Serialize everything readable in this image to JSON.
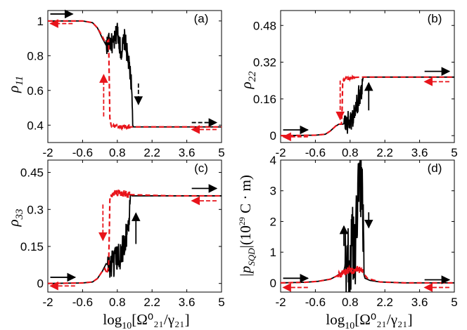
{
  "figure": {
    "xlabel_text": "log",
    "xlabel_sub": "10",
    "xlabel_bracket": "[Ω⁰₂₁/γ₂₁]",
    "colors": {
      "forward": "#000000",
      "backward": "#e8141b",
      "frame": "#000000"
    }
  },
  "chart_data": [
    {
      "id": "a",
      "type": "line",
      "tag": "(a)",
      "ylabel": "ρ11",
      "ylabel_main": "ρ",
      "ylabel_sub": "11",
      "xlim": [
        -2,
        5
      ],
      "ylim": [
        0.3,
        1.06
      ],
      "xticks": [
        -2,
        -0.6,
        0.8,
        2.2,
        3.6,
        5
      ],
      "xtick_labels": [
        "-2",
        "-0.6",
        "0.8",
        "2.2",
        "3.6",
        "5"
      ],
      "yticks": [
        0.4,
        0.6,
        0.8,
        1
      ],
      "ytick_labels": [
        "0.4",
        "0.6",
        "0.8",
        "1"
      ],
      "series": [
        {
          "name": "forward sweep",
          "style": "solid",
          "x": [
            -2,
            -0.6,
            -0.2,
            0.0,
            0.2,
            0.35,
            0.5,
            0.65,
            0.8,
            0.95,
            1.1,
            1.25,
            1.35,
            1.4,
            1.42,
            1.45,
            3.0,
            5
          ],
          "y": [
            1.0,
            1.0,
            0.99,
            0.96,
            0.9,
            0.86,
            0.88,
            0.86,
            0.95,
            0.82,
            0.9,
            0.76,
            0.66,
            0.57,
            0.4,
            0.39,
            0.39,
            0.39
          ],
          "noise_range": [
            0.35,
            1.4
          ],
          "noise_amp": 0.06
        },
        {
          "name": "backward sweep",
          "style": "dashed",
          "x": [
            -2,
            -0.6,
            -0.2,
            0.0,
            0.2,
            0.3,
            0.38,
            0.45,
            0.48,
            0.5,
            0.55,
            0.7,
            0.9,
            1.1,
            1.3,
            3.0,
            5
          ],
          "y": [
            1.0,
            1.0,
            0.99,
            0.96,
            0.91,
            0.88,
            0.88,
            0.89,
            0.62,
            0.44,
            0.4,
            0.395,
            0.39,
            0.39,
            0.39,
            0.39,
            0.39
          ],
          "noise_range": [
            0.55,
            1.3
          ],
          "noise_amp": 0.012
        }
      ],
      "arrows": [
        {
          "color": "forward",
          "style": "solid",
          "x1": -1.9,
          "x2": -1.0,
          "y": 1.04
        },
        {
          "color": "backward",
          "style": "dashed",
          "x1": -1.0,
          "x2": -1.9,
          "y": 0.985
        },
        {
          "color": "forward",
          "style": "dashed",
          "x1": 3.8,
          "x2": 4.8,
          "y": 0.415
        },
        {
          "color": "backward",
          "style": "dashed",
          "x1": 4.8,
          "x2": 3.8,
          "y": 0.375
        },
        {
          "color": "forward",
          "style": "dashed",
          "x": 1.65,
          "y1": 0.64,
          "y2": 0.52
        },
        {
          "color": "backward",
          "style": "dashed",
          "x": 0.25,
          "y1": 0.45,
          "y2": 0.69
        }
      ]
    },
    {
      "id": "b",
      "type": "line",
      "tag": "(b)",
      "ylabel": "ρ22",
      "ylabel_main": "ρ",
      "ylabel_sub": "22",
      "xlim": [
        -2,
        5
      ],
      "ylim": [
        -0.03,
        0.545
      ],
      "xticks": [
        -2,
        -0.6,
        0.8,
        2.2,
        3.6,
        5
      ],
      "xtick_labels": [
        "-2",
        "-0.6",
        "0.8",
        "2.2",
        "3.6",
        "5"
      ],
      "yticks": [
        0,
        0.16,
        0.32,
        0.48
      ],
      "ytick_labels": [
        "0",
        "0.16",
        "0.32",
        "0.48"
      ],
      "series": [
        {
          "name": "forward sweep",
          "style": "solid",
          "x": [
            -2,
            -0.6,
            -0.2,
            0.0,
            0.2,
            0.35,
            0.5,
            0.65,
            0.8,
            0.95,
            1.05,
            1.15,
            1.25,
            1.3,
            1.33,
            1.4,
            3.0,
            5
          ],
          "y": [
            0.0,
            0.002,
            0.006,
            0.02,
            0.04,
            0.05,
            0.05,
            0.055,
            0.06,
            0.09,
            0.12,
            0.17,
            0.2,
            0.24,
            0.255,
            0.255,
            0.255,
            0.255
          ],
          "noise_range": [
            0.55,
            1.3
          ],
          "noise_amp": 0.05
        },
        {
          "name": "backward sweep",
          "style": "dashed",
          "x": [
            -2,
            -0.6,
            -0.2,
            0.0,
            0.2,
            0.3,
            0.38,
            0.45,
            0.48,
            0.5,
            0.55,
            0.7,
            0.9,
            1.2,
            3.0,
            5
          ],
          "y": [
            0.0,
            0.002,
            0.006,
            0.02,
            0.04,
            0.05,
            0.05,
            0.05,
            0.12,
            0.23,
            0.245,
            0.25,
            0.253,
            0.255,
            0.255,
            0.255
          ],
          "noise_range": [
            0.5,
            1.0
          ],
          "noise_amp": 0.006
        }
      ],
      "arrows": [
        {
          "color": "forward",
          "style": "solid",
          "x1": -1.9,
          "x2": -0.9,
          "y": 0.025
        },
        {
          "color": "backward",
          "style": "dashed",
          "x1": -0.9,
          "x2": -1.9,
          "y": -0.005
        },
        {
          "color": "forward",
          "style": "solid",
          "x1": 3.8,
          "x2": 4.8,
          "y": 0.28
        },
        {
          "color": "backward",
          "style": "dashed",
          "x1": 4.8,
          "x2": 3.8,
          "y": 0.235
        },
        {
          "color": "forward",
          "style": "solid",
          "x": 1.55,
          "y1": 0.11,
          "y2": 0.23
        },
        {
          "color": "backward",
          "style": "dashed",
          "x": 0.4,
          "y1": 0.24,
          "y2": 0.07
        }
      ]
    },
    {
      "id": "c",
      "type": "line",
      "tag": "(c)",
      "ylabel": "ρ33",
      "ylabel_main": "ρ",
      "ylabel_sub": "33",
      "xlim": [
        -2,
        5
      ],
      "ylim": [
        -0.035,
        0.5
      ],
      "xticks": [
        -2,
        -0.6,
        0.8,
        2.2,
        3.6,
        5
      ],
      "xtick_labels": [
        "-2",
        "-0.6",
        "0.8",
        "2.2",
        "3.6",
        "5"
      ],
      "yticks": [
        0,
        0.15,
        0.3,
        0.45
      ],
      "ytick_labels": [
        "0",
        "0.15",
        "0.3",
        "0.45"
      ],
      "series": [
        {
          "name": "forward sweep",
          "style": "solid",
          "x": [
            -2,
            -0.6,
            -0.2,
            0.0,
            0.2,
            0.35,
            0.5,
            0.65,
            0.8,
            0.95,
            1.05,
            1.15,
            1.25,
            1.3,
            1.33,
            1.4,
            3.0,
            5
          ],
          "y": [
            0.0,
            0.002,
            0.006,
            0.02,
            0.05,
            0.08,
            0.07,
            0.08,
            0.1,
            0.12,
            0.15,
            0.2,
            0.22,
            0.3,
            0.36,
            0.355,
            0.355,
            0.355
          ],
          "noise_range": [
            0.4,
            1.3
          ],
          "noise_amp": 0.06
        },
        {
          "name": "backward sweep",
          "style": "dashed",
          "x": [
            -2,
            -0.6,
            -0.2,
            0.0,
            0.2,
            0.3,
            0.38,
            0.45,
            0.48,
            0.5,
            0.55,
            0.7,
            0.9,
            1.1,
            1.3,
            3.0,
            5
          ],
          "y": [
            0.0,
            0.002,
            0.006,
            0.02,
            0.05,
            0.06,
            0.04,
            0.07,
            0.22,
            0.34,
            0.36,
            0.365,
            0.37,
            0.365,
            0.36,
            0.355,
            0.355
          ],
          "noise_range": [
            0.55,
            1.3
          ],
          "noise_amp": 0.015
        }
      ],
      "arrows": [
        {
          "color": "forward",
          "style": "solid",
          "x1": -1.9,
          "x2": -0.9,
          "y": 0.025
        },
        {
          "color": "backward",
          "style": "dashed",
          "x1": -0.9,
          "x2": -1.9,
          "y": -0.01
        },
        {
          "color": "forward",
          "style": "solid",
          "x1": 3.8,
          "x2": 4.8,
          "y": 0.385
        },
        {
          "color": "backward",
          "style": "dashed",
          "x1": 4.8,
          "x2": 3.8,
          "y": 0.335
        },
        {
          "color": "forward",
          "style": "solid",
          "x": 1.55,
          "y1": 0.16,
          "y2": 0.285
        },
        {
          "color": "backward",
          "style": "dashed",
          "x": 0.22,
          "y1": 0.32,
          "y2": 0.175
        }
      ]
    },
    {
      "id": "d",
      "type": "line",
      "tag": "(d)",
      "ylabel": "|pSQD|(10^29 C·m)",
      "ylabel_open": "|",
      "ylabel_main": "p",
      "ylabel_sub": "SQD",
      "ylabel_close": "|(10",
      "ylabel_sup": "29",
      "ylabel_unit": " C · m)",
      "xlim": [
        -2,
        5
      ],
      "ylim": [
        -0.3,
        4.0
      ],
      "xticks": [
        -2,
        -0.6,
        0.8,
        2.2,
        3.6,
        5
      ],
      "xtick_labels": [
        "-2",
        "-0.6",
        "0.8",
        "2.2",
        "3.6",
        "5"
      ],
      "yticks": [
        0,
        1,
        2,
        3,
        4
      ],
      "ytick_labels": [
        "0",
        "1",
        "2",
        "3",
        "4"
      ],
      "series": [
        {
          "name": "forward sweep",
          "style": "solid",
          "x": [
            -2,
            -1.0,
            -0.5,
            0.0,
            0.2,
            0.4,
            0.55,
            0.7,
            0.8,
            0.9,
            1.0,
            1.1,
            1.2,
            1.3,
            1.35,
            1.4,
            1.6,
            2.0,
            3.0,
            5
          ],
          "y": [
            0.0,
            0.02,
            0.05,
            0.12,
            0.2,
            0.3,
            0.4,
            0.9,
            0.5,
            1.4,
            0.6,
            2.8,
            3.2,
            3.4,
            0.3,
            0.15,
            0.08,
            0.03,
            0.0,
            0.0
          ],
          "noise_range": [
            0.6,
            1.35
          ],
          "noise_amp": 1.2
        },
        {
          "name": "backward sweep",
          "style": "dashed",
          "x": [
            -2,
            -1.0,
            -0.5,
            0.0,
            0.2,
            0.35,
            0.45,
            0.55,
            0.7,
            0.9,
            1.1,
            1.3,
            1.5,
            2.0,
            3.0,
            5
          ],
          "y": [
            0.0,
            0.02,
            0.05,
            0.12,
            0.2,
            0.25,
            0.3,
            0.35,
            0.4,
            0.4,
            0.45,
            0.35,
            0.15,
            0.03,
            0.0,
            0.0
          ],
          "noise_range": [
            0.3,
            1.3
          ],
          "noise_amp": 0.12
        }
      ],
      "arrows": [
        {
          "color": "forward",
          "style": "solid",
          "x1": -1.9,
          "x2": -0.9,
          "y": 0.15
        },
        {
          "color": "backward",
          "style": "dashed",
          "x1": -0.9,
          "x2": -1.9,
          "y": -0.15
        },
        {
          "color": "forward",
          "style": "solid",
          "x1": 3.8,
          "x2": 4.8,
          "y": 0.1
        },
        {
          "color": "backward",
          "style": "dashed",
          "x1": 4.8,
          "x2": 3.8,
          "y": -0.15
        },
        {
          "color": "forward",
          "style": "solid",
          "x": 1.55,
          "y1": 2.3,
          "y2": 1.8
        },
        {
          "color": "forward",
          "style": "solid",
          "x": 0.55,
          "y1": 1.2,
          "y2": 1.85
        }
      ]
    }
  ]
}
